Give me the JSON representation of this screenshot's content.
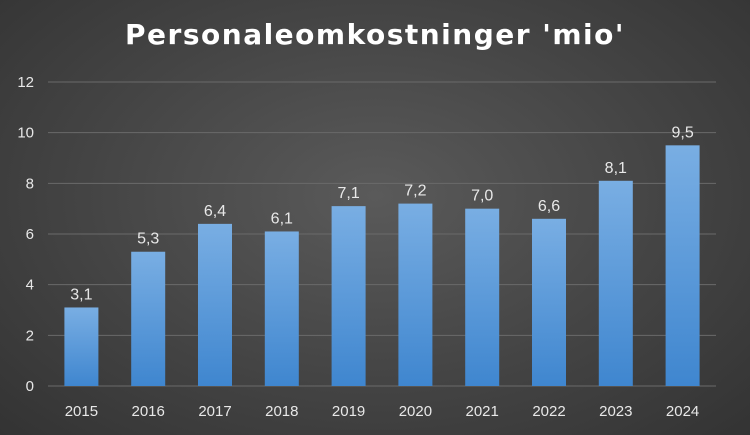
{
  "chart_data": {
    "type": "bar",
    "title": "Personaleomkostninger 'mio'",
    "categories": [
      "2015",
      "2016",
      "2017",
      "2018",
      "2019",
      "2020",
      "2021",
      "2022",
      "2023",
      "2024"
    ],
    "values": [
      3.1,
      5.3,
      6.4,
      6.1,
      7.1,
      7.2,
      7.0,
      6.6,
      8.1,
      9.5
    ],
    "data_labels": [
      "3,1",
      "5,3",
      "6,4",
      "6,1",
      "7,1",
      "7,2",
      "7,0",
      "6,6",
      "8,1",
      "9,5"
    ],
    "yticks": [
      "0",
      "2",
      "4",
      "6",
      "8",
      "10",
      "12"
    ],
    "ylim": [
      0,
      12
    ],
    "grid": true,
    "legend": "none",
    "colors": {
      "bar_top": "#79aee3",
      "bar_bottom": "#3f86cf",
      "grid": "#6a6a6a"
    }
  }
}
